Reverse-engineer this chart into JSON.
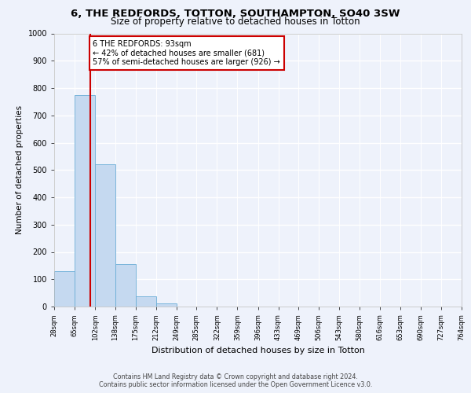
{
  "title": "6, THE REDFORDS, TOTTON, SOUTHAMPTON, SO40 3SW",
  "subtitle": "Size of property relative to detached houses in Totton",
  "xlabel": "Distribution of detached houses by size in Totton",
  "ylabel": "Number of detached properties",
  "footer_line1": "Contains HM Land Registry data © Crown copyright and database right 2024.",
  "footer_line2": "Contains public sector information licensed under the Open Government Licence v3.0.",
  "bar_edges": [
    28,
    65,
    102,
    138,
    175,
    212,
    249,
    285,
    322,
    359,
    396,
    433,
    469,
    506,
    543,
    580,
    616,
    653,
    690,
    727,
    764
  ],
  "bar_heights": [
    130,
    775,
    520,
    155,
    37,
    12,
    0,
    0,
    0,
    0,
    0,
    0,
    0,
    0,
    0,
    0,
    0,
    0,
    0,
    0
  ],
  "bar_color": "#c5d9f0",
  "bar_edge_color": "#6baed6",
  "red_line_x": 93,
  "annotation_text": "6 THE REDFORDS: 93sqm\n← 42% of detached houses are smaller (681)\n57% of semi-detached houses are larger (926) →",
  "annotation_box_color": "#ffffff",
  "annotation_box_edge_color": "#cc0000",
  "red_line_color": "#cc0000",
  "ylim": [
    0,
    1000
  ],
  "yticks": [
    0,
    100,
    200,
    300,
    400,
    500,
    600,
    700,
    800,
    900,
    1000
  ],
  "bg_color": "#eef2fb",
  "axes_bg_color": "#eef2fb",
  "grid_color": "#ffffff",
  "title_fontsize": 9.5,
  "subtitle_fontsize": 8.5,
  "ylabel_fontsize": 7.5,
  "xlabel_fontsize": 8.0,
  "tick_fontsize": 7.0,
  "xtick_fontsize": 6.0,
  "annotation_fontsize": 7.0,
  "footer_fontsize": 5.8
}
